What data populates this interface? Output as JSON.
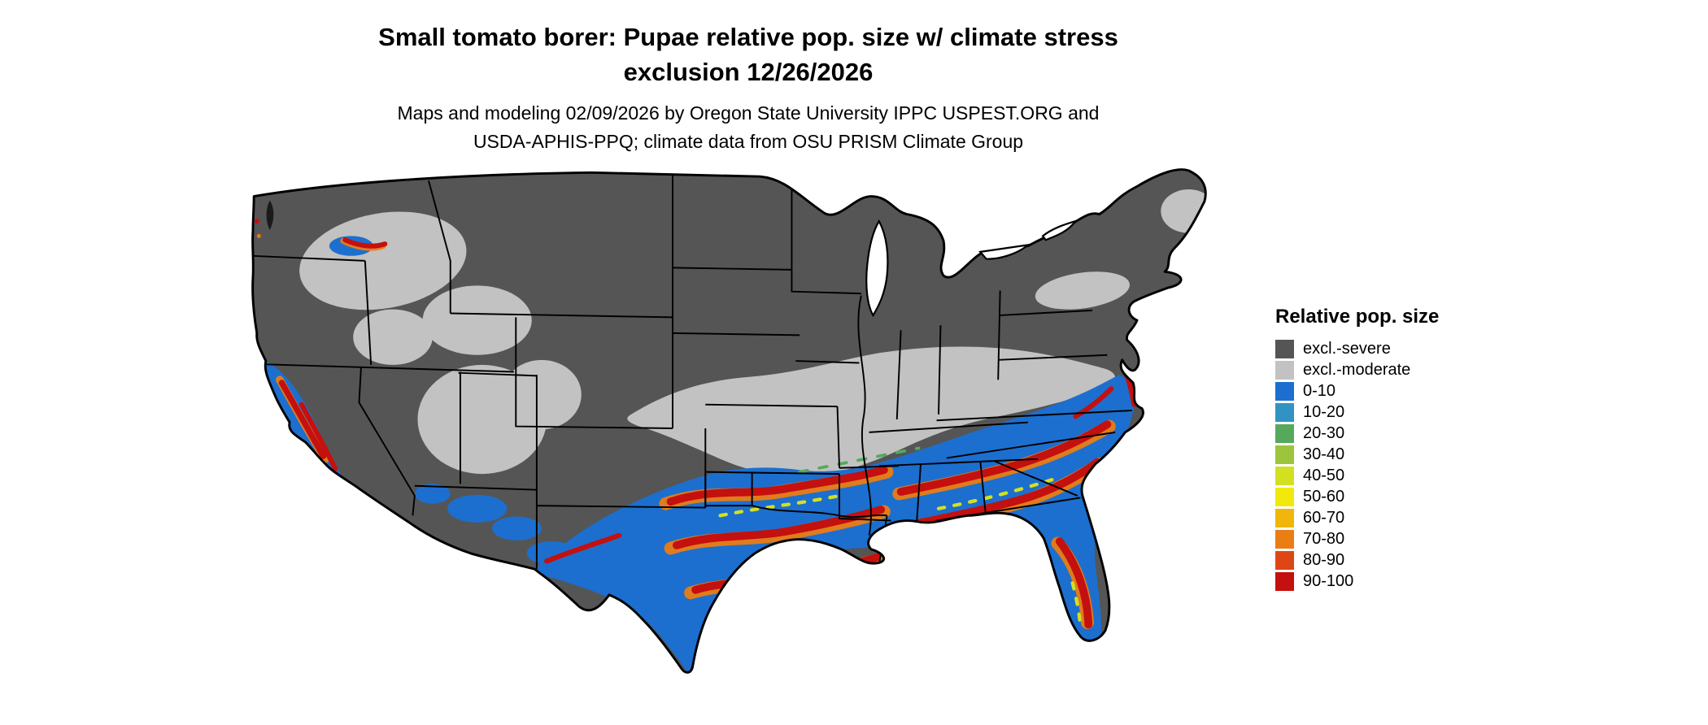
{
  "title_line1": "Small tomato borer: Pupae relative pop. size w/ climate stress",
  "title_line2": "exclusion 12/26/2026",
  "subtitle_line1": "Maps and modeling 02/09/2026 by Oregon State University IPPC USPEST.ORG and",
  "subtitle_line2": "USDA-APHIS-PPQ; climate data from OSU PRISM Climate Group",
  "map": {
    "name": "contiguous-us-relative-population-raster",
    "border_color": "#000000",
    "background_color": "#ffffff"
  },
  "legend": {
    "title": "Relative pop. size",
    "items": [
      {
        "label": "excl.-severe",
        "color": "#555555"
      },
      {
        "label": "excl.-moderate",
        "color": "#c2c2c2"
      },
      {
        "label": "0-10",
        "color": "#1c6fce"
      },
      {
        "label": "10-20",
        "color": "#3193c2"
      },
      {
        "label": "20-30",
        "color": "#56a85c"
      },
      {
        "label": "30-40",
        "color": "#9cc43d"
      },
      {
        "label": "40-50",
        "color": "#d3e021"
      },
      {
        "label": "50-60",
        "color": "#f2e90c"
      },
      {
        "label": "60-70",
        "color": "#f0b60c"
      },
      {
        "label": "70-80",
        "color": "#ea7d14"
      },
      {
        "label": "80-90",
        "color": "#de4715"
      },
      {
        "label": "90-100",
        "color": "#c4100e"
      }
    ]
  }
}
